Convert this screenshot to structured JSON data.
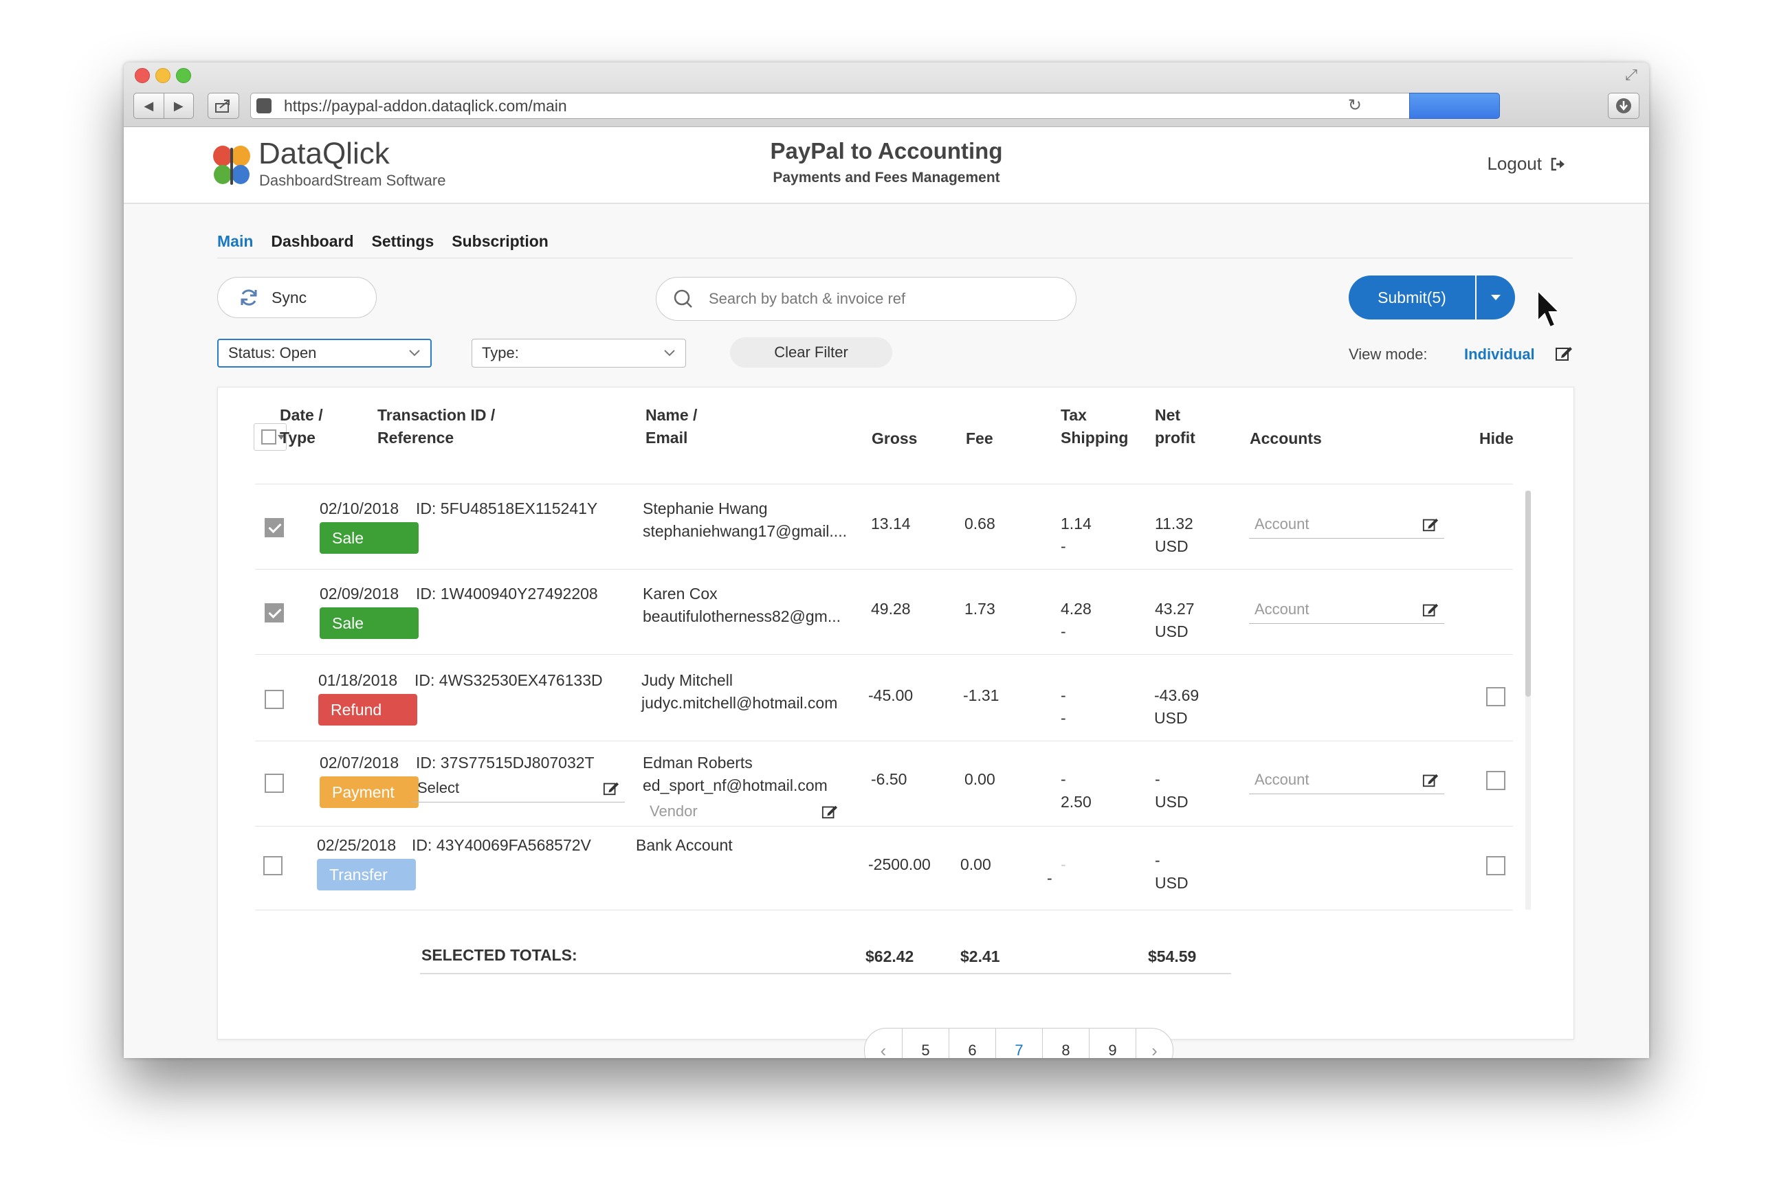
{
  "browser": {
    "url": "https://paypal-addon.dataqlick.com/main"
  },
  "header": {
    "brand_name": "DataQlick",
    "brand_sub": "DashboardStream Software",
    "app_title": "PayPal to Accounting",
    "app_subtitle": "Payments and Fees Management",
    "logout_label": "Logout"
  },
  "tabs": [
    {
      "label": "Main",
      "active": true
    },
    {
      "label": "Dashboard",
      "active": false
    },
    {
      "label": "Settings",
      "active": false
    },
    {
      "label": "Subscription",
      "active": false
    }
  ],
  "toolbar": {
    "sync_label": "Sync",
    "search_placeholder": "Search by batch & invoice ref",
    "submit_label": "Submit(5)",
    "status_filter": "Status: Open",
    "type_filter": "Type:",
    "clear_filter_label": "Clear Filter",
    "view_mode_label": "View mode:",
    "view_mode_value": "Individual"
  },
  "table": {
    "headers": {
      "date": "Date /",
      "date2": "Type",
      "txn": "Transaction ID /",
      "txn2": "Reference",
      "name": "Name /",
      "name2": "Email",
      "gross": "Gross",
      "fee": "Fee",
      "tax": "Tax",
      "tax2": "Shipping",
      "net": "Net",
      "net2": "profit",
      "accounts": "Accounts",
      "hide": "Hide"
    },
    "account_placeholder": "Account",
    "rows": [
      {
        "checked": true,
        "date": "02/10/2018",
        "type": "Sale",
        "type_color": "#3ca037",
        "txn_id": "ID: 5FU48518EX115241Y",
        "name": "Stephanie Hwang",
        "email": "stephaniehwang17@gmail....",
        "gross": "13.14",
        "fee": "0.68",
        "tax": "1.14",
        "shipping": "-",
        "net": "11.32",
        "currency": "USD"
      },
      {
        "checked": true,
        "date": "02/09/2018",
        "type": "Sale",
        "type_color": "#3ca037",
        "txn_id": "ID: 1W400940Y27492208",
        "name": "Karen Cox",
        "email": "beautifulotherness82@gm...",
        "gross": "49.28",
        "fee": "1.73",
        "tax": "4.28",
        "shipping": "-",
        "net": "43.27",
        "currency": "USD"
      },
      {
        "checked": false,
        "date": "01/18/2018",
        "type": "Refund",
        "type_color": "#dc4f4a",
        "txn_id": "ID: 4WS32530EX476133D",
        "name": "Judy Mitchell",
        "email": "judyc.mitchell@hotmail.com",
        "gross": "-45.00",
        "fee": "-1.31",
        "tax": "-",
        "shipping": "-",
        "net": "-43.69",
        "currency": "USD"
      },
      {
        "checked": false,
        "date": "02/07/2018",
        "type": "Payment",
        "type_color": "#f0ab44",
        "txn_id": "ID: 37S77515DJ807032T",
        "reference_value": "Select",
        "name": "Edman Roberts",
        "email": "ed_sport_nf@hotmail.com",
        "vendor_placeholder": "Vendor",
        "gross": "-6.50",
        "fee": "0.00",
        "tax": "-",
        "shipping": "2.50",
        "net": "-",
        "currency": "USD"
      },
      {
        "checked": false,
        "date": "02/25/2018",
        "type": "Transfer",
        "type_color": "#9dc2ec",
        "txn_id": "ID: 43Y40069FA568572V",
        "name": "Bank Account",
        "gross": "-2500.00",
        "fee": "0.00",
        "tax": "-",
        "shipping": "-",
        "net": "-",
        "currency": "USD"
      }
    ],
    "totals": {
      "label": "SELECTED TOTALS:",
      "gross": "$62.42",
      "fee": "$2.41",
      "net": "$54.59"
    }
  },
  "pagination": {
    "pages": [
      "5",
      "6",
      "7",
      "8",
      "9"
    ],
    "active": "7"
  },
  "icons": {
    "logo": "butterfly-logo-icon",
    "sync": "refresh-icon",
    "search": "search-icon",
    "logout": "sign-out-icon",
    "edit": "edit-icon",
    "caret": "chevron-down-icon"
  }
}
